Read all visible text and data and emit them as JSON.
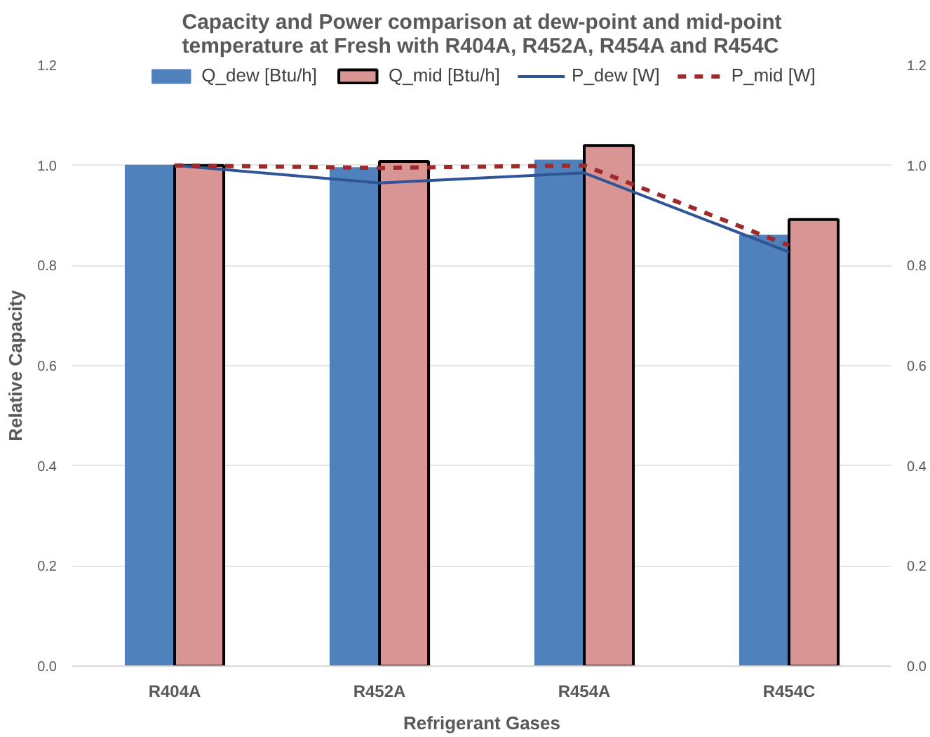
{
  "chart_data": {
    "type": "bar",
    "title": "Capacity and Power comparison at dew-point and mid-point temperature at Fresh with R404A, R452A, R454A and R454C",
    "xlabel": "Refrigerant Gases",
    "ylabel": "Relative Capacity",
    "categories": [
      "R404A",
      "R452A",
      "R454A",
      "R454C"
    ],
    "series": [
      {
        "name": "Q_dew [Btu/h]",
        "color": "#4f81bd",
        "values": [
          1.0,
          0.995,
          1.01,
          0.86
        ]
      },
      {
        "name": "Q_mid [Btu/h]",
        "color": "#d99594",
        "values": [
          1.0,
          1.008,
          1.04,
          0.892
        ]
      },
      {
        "name": "P_dew [W]",
        "type": "line",
        "color": "#2f5597",
        "line_style": "solid",
        "values": [
          1.0,
          0.965,
          0.985,
          0.827
        ]
      },
      {
        "name": "P_mid [W]",
        "type": "line",
        "color": "#9e2a2b",
        "line_style": "dashed",
        "values": [
          1.0,
          0.995,
          1.0,
          0.84
        ]
      }
    ],
    "ylim": [
      0,
      1.2
    ],
    "yticks": [
      {
        "value": 0,
        "label": "0.0"
      },
      {
        "value": 0.2,
        "label": "0.2"
      },
      {
        "value": 0.4,
        "label": "0.4"
      },
      {
        "value": 0.6,
        "label": "0.6"
      },
      {
        "value": 0.8,
        "label": "0.8"
      },
      {
        "value": 1.0,
        "label": "1.0"
      },
      {
        "value": 1.2,
        "label": "1.2"
      }
    ],
    "y2lim": [
      0,
      1.2
    ],
    "y2ticks": [
      {
        "value": 0,
        "label": "0.0"
      },
      {
        "value": 0.2,
        "label": "0.2"
      },
      {
        "value": 0.4,
        "label": "0.4"
      },
      {
        "value": 0.6,
        "label": "0.6"
      },
      {
        "value": 0.8,
        "label": "0.8"
      },
      {
        "value": 1.0,
        "label": "1.0"
      },
      {
        "value": 1.2,
        "label": "1.2"
      }
    ],
    "grid": "y",
    "legend": "top",
    "marker": "none"
  }
}
